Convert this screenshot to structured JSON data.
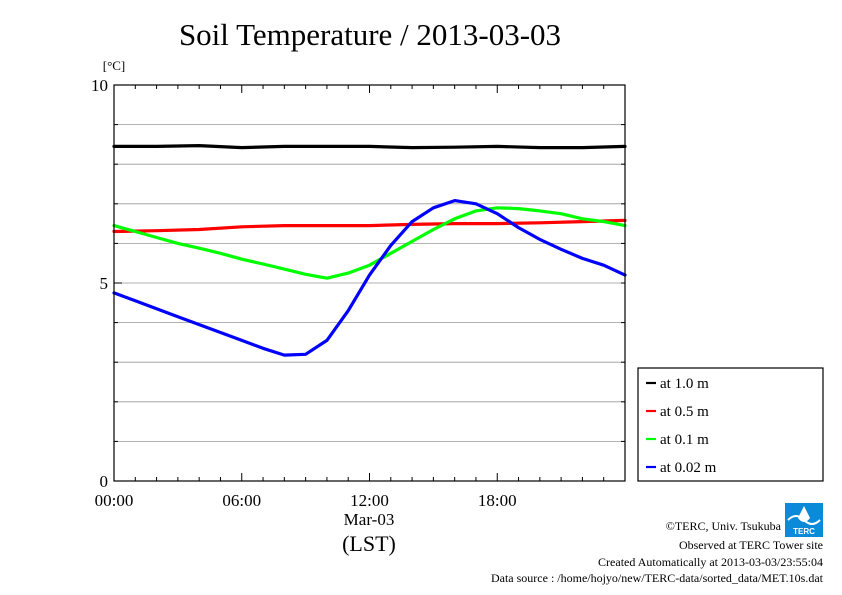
{
  "chart_data": {
    "type": "line",
    "title": "Soil Temperature / 2013-03-03",
    "ylabel": "[°C]",
    "xlabel": "(LST)",
    "date_label": "Mar-03",
    "ylim": [
      0,
      10
    ],
    "xlim": [
      0,
      24
    ],
    "y_ticks": [
      "0",
      "5",
      "10"
    ],
    "x_ticks": [
      "00:00",
      "06:00",
      "12:00",
      "18:00"
    ],
    "grid": true,
    "legend_position": "bottom-right-outside",
    "series": [
      {
        "name": "at 1.0 m",
        "color": "#000000",
        "x": [
          0,
          2,
          4,
          6,
          8,
          10,
          12,
          14,
          16,
          18,
          20,
          22,
          24
        ],
        "y": [
          8.45,
          8.45,
          8.47,
          8.42,
          8.45,
          8.45,
          8.45,
          8.42,
          8.43,
          8.45,
          8.42,
          8.42,
          8.45
        ]
      },
      {
        "name": "at 0.5 m",
        "color": "#ff0000",
        "x": [
          0,
          2,
          4,
          6,
          8,
          10,
          12,
          14,
          16,
          18,
          20,
          22,
          24
        ],
        "y": [
          6.3,
          6.32,
          6.35,
          6.42,
          6.45,
          6.45,
          6.45,
          6.48,
          6.5,
          6.5,
          6.52,
          6.55,
          6.58
        ]
      },
      {
        "name": "at 0.1 m",
        "color": "#00ff00",
        "x": [
          0,
          1,
          2,
          3,
          4,
          5,
          6,
          7,
          8,
          9,
          10,
          11,
          12,
          13,
          14,
          15,
          16,
          17,
          18,
          19,
          20,
          21,
          22,
          23,
          24
        ],
        "y": [
          6.45,
          6.3,
          6.15,
          6.0,
          5.88,
          5.75,
          5.6,
          5.48,
          5.35,
          5.22,
          5.12,
          5.25,
          5.45,
          5.75,
          6.05,
          6.35,
          6.62,
          6.82,
          6.9,
          6.88,
          6.82,
          6.75,
          6.62,
          6.55,
          6.45
        ]
      },
      {
        "name": "at 0.02 m",
        "color": "#0000ff",
        "x": [
          0,
          1,
          2,
          3,
          4,
          5,
          6,
          7,
          8,
          9,
          10,
          11,
          12,
          13,
          14,
          15,
          16,
          17,
          18,
          19,
          20,
          21,
          22,
          23,
          24
        ],
        "y": [
          4.75,
          4.55,
          4.35,
          4.15,
          3.95,
          3.75,
          3.55,
          3.35,
          3.18,
          3.2,
          3.55,
          4.3,
          5.2,
          5.95,
          6.55,
          6.9,
          7.08,
          7.0,
          6.75,
          6.4,
          6.1,
          5.85,
          5.62,
          5.45,
          5.2
        ]
      }
    ]
  },
  "footer": {
    "copyright": "©TERC, Univ. Tsukuba",
    "observed": "Observed at TERC Tower site",
    "created": "Created Automatically at 2013-03-03/23:55:04",
    "source": "Data source : /home/hojyo/new/TERC-data/sorted_data/MET.10s.dat"
  },
  "logo": {
    "text": "TERC",
    "color": "#0a8ad8"
  }
}
